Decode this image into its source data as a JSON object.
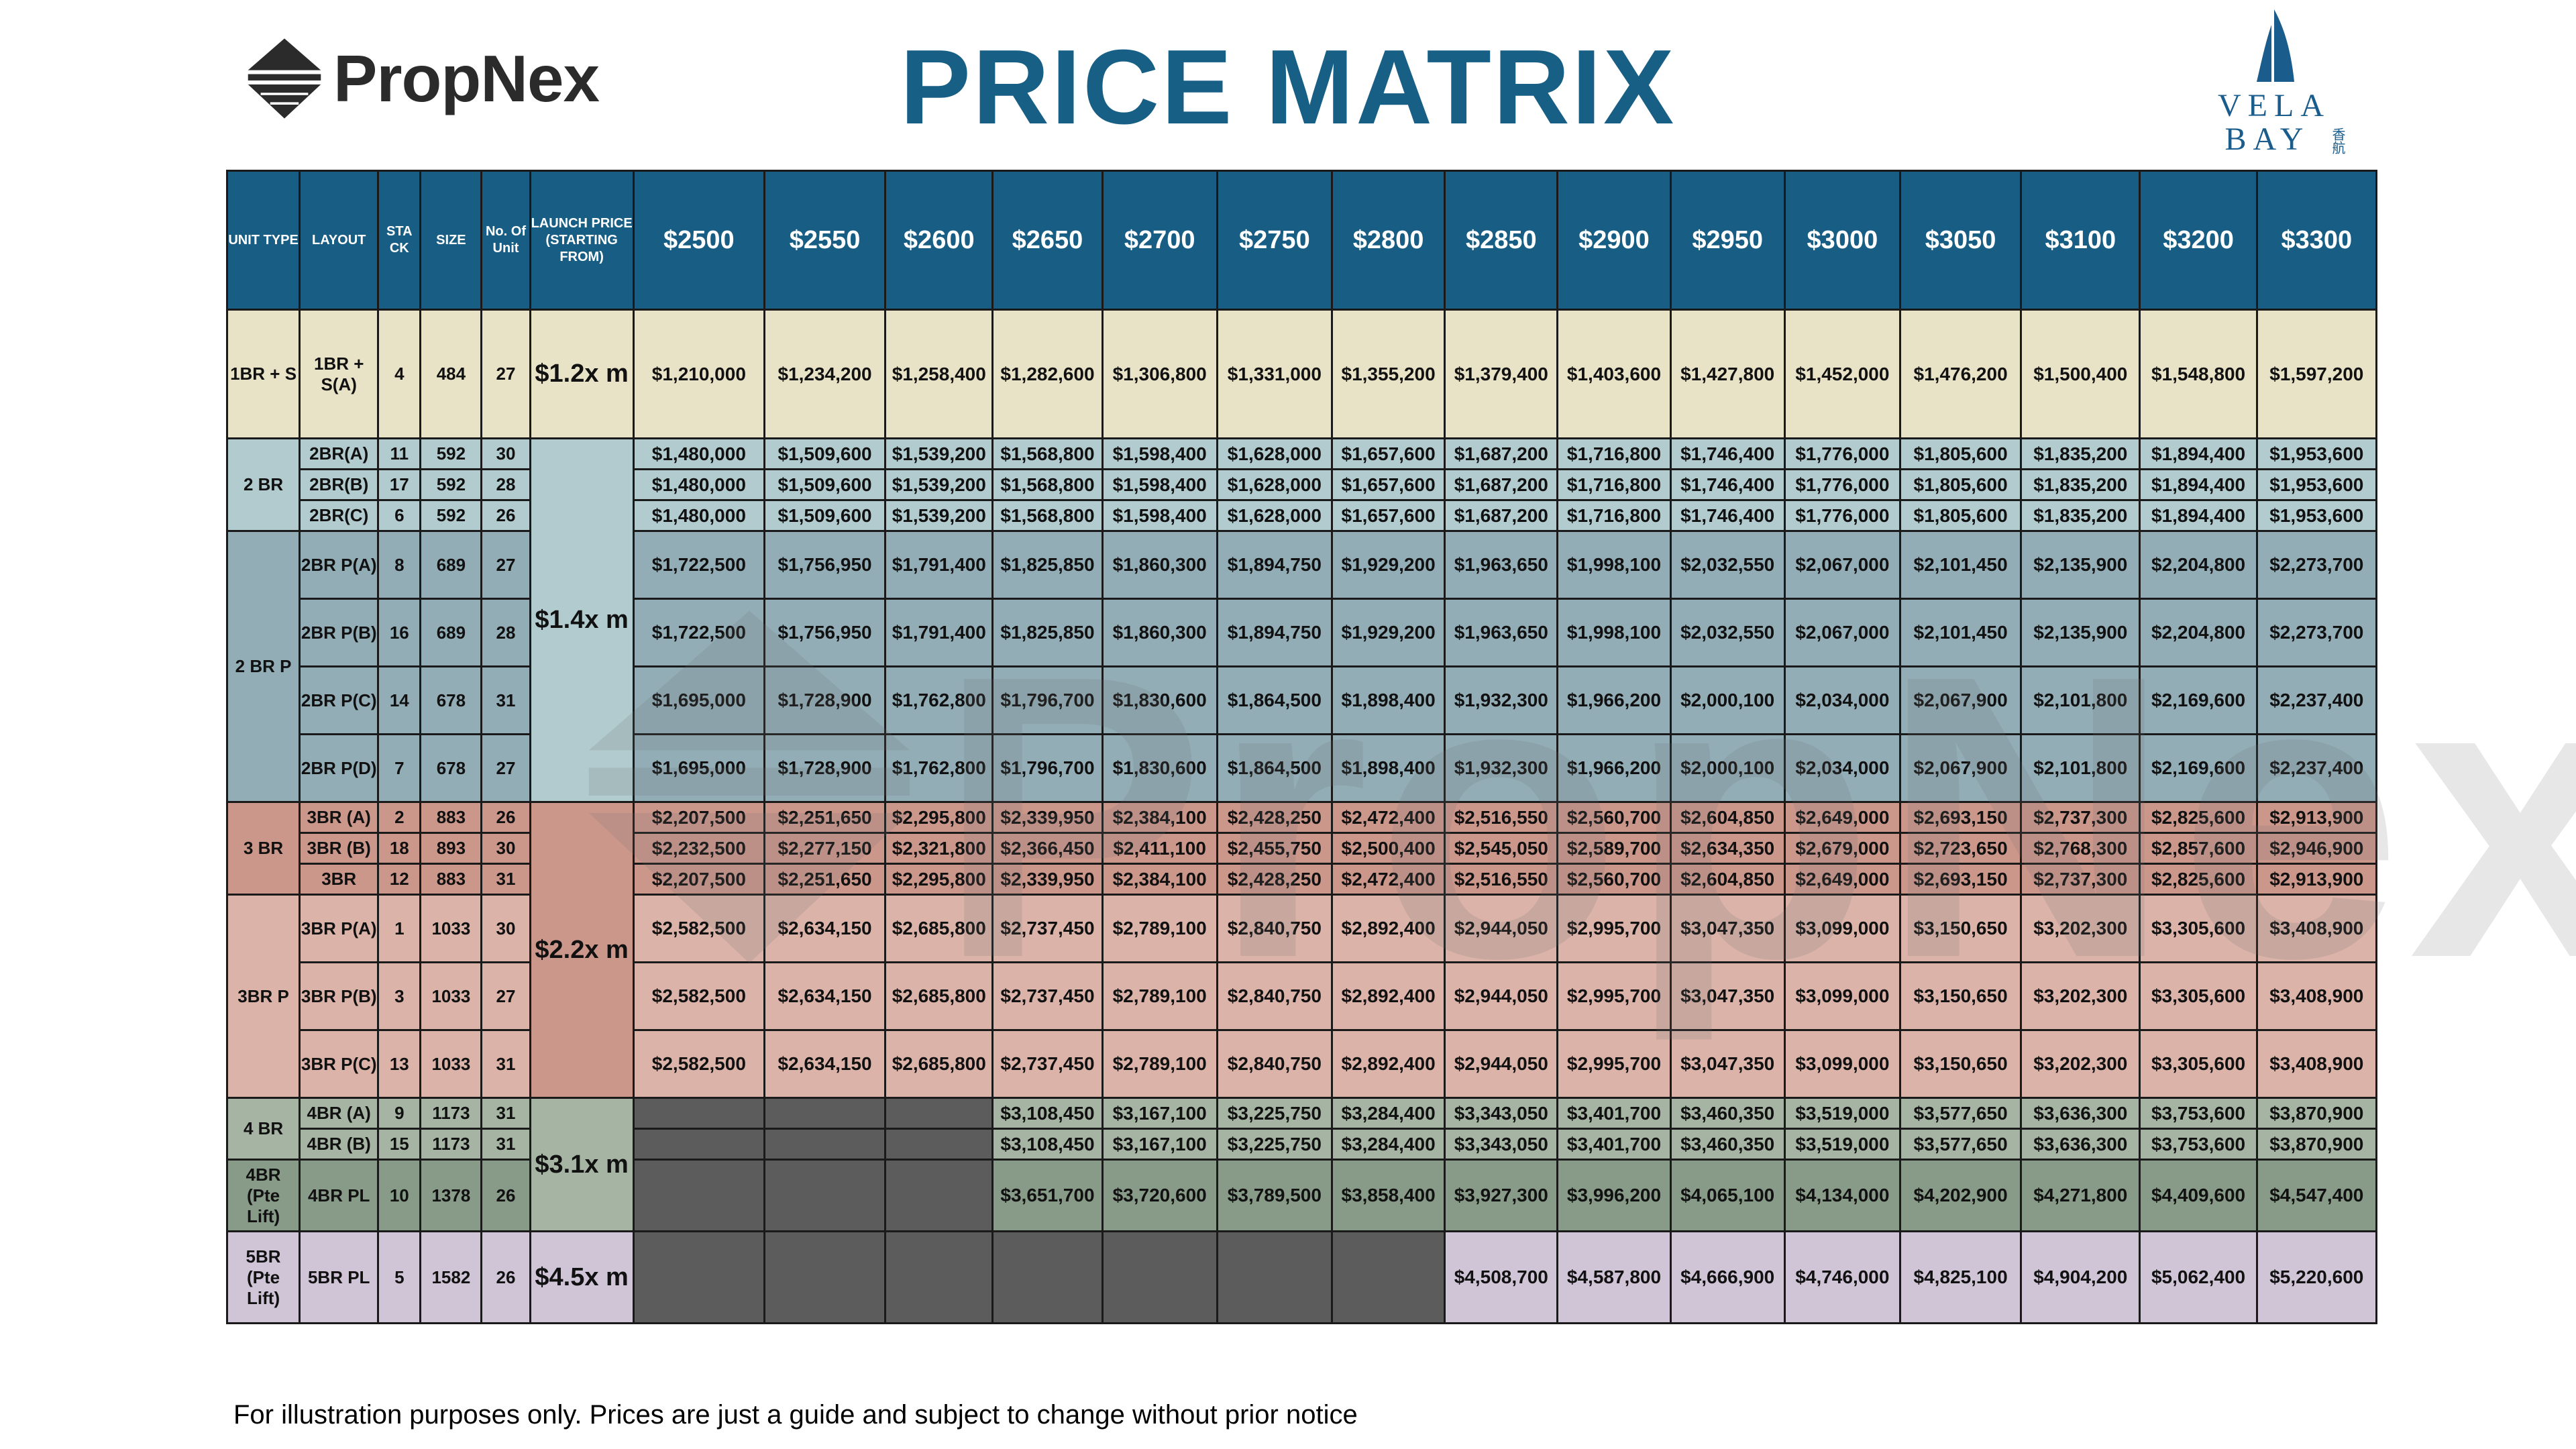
{
  "header": {
    "brand": "PropNex",
    "title": "PRICE MATRIX",
    "project_logo_line1": "VELA",
    "project_logo_line2": "BAY",
    "project_logo_cn": "香航"
  },
  "table": {
    "headers": {
      "unit_type": "UNIT TYPE",
      "layout": "LAYOUT",
      "stack": "STA CK",
      "size": "SIZE",
      "units": "No. Of Unit",
      "launch": "LAUNCH PRICE (STARTING FROM)",
      "prices": [
        "$2500",
        "$2550",
        "$2600",
        "$2650",
        "$2700",
        "$2750",
        "$2800",
        "$2850",
        "$2900",
        "$2950",
        "$3000",
        "$3050",
        "$3100",
        "$3200",
        "$3300"
      ]
    },
    "groups": [
      {
        "unit_type": "1BR + S",
        "launch": "$1.2x m",
        "rows": [
          {
            "layout": "1BR + S(A)",
            "stack": "4",
            "size": "484",
            "units": "27",
            "values": [
              "$1,210,000",
              "$1,234,200",
              "$1,258,400",
              "$1,282,600",
              "$1,306,800",
              "$1,331,000",
              "$1,355,200",
              "$1,379,400",
              "$1,403,600",
              "$1,427,800",
              "$1,452,000",
              "$1,476,200",
              "$1,500,400",
              "$1,548,800",
              "$1,597,200"
            ]
          }
        ]
      },
      {
        "unit_type": "2 BR",
        "launch": "$1.4x m",
        "rows": [
          {
            "layout": "2BR(A)",
            "stack": "11",
            "size": "592",
            "units": "30",
            "values": [
              "$1,480,000",
              "$1,509,600",
              "$1,539,200",
              "$1,568,800",
              "$1,598,400",
              "$1,628,000",
              "$1,657,600",
              "$1,687,200",
              "$1,716,800",
              "$1,746,400",
              "$1,776,000",
              "$1,805,600",
              "$1,835,200",
              "$1,894,400",
              "$1,953,600"
            ]
          },
          {
            "layout": "2BR(B)",
            "stack": "17",
            "size": "592",
            "units": "28",
            "values": [
              "$1,480,000",
              "$1,509,600",
              "$1,539,200",
              "$1,568,800",
              "$1,598,400",
              "$1,628,000",
              "$1,657,600",
              "$1,687,200",
              "$1,716,800",
              "$1,746,400",
              "$1,776,000",
              "$1,805,600",
              "$1,835,200",
              "$1,894,400",
              "$1,953,600"
            ]
          },
          {
            "layout": "2BR(C)",
            "stack": "6",
            "size": "592",
            "units": "26",
            "values": [
              "$1,480,000",
              "$1,509,600",
              "$1,539,200",
              "$1,568,800",
              "$1,598,400",
              "$1,628,000",
              "$1,657,600",
              "$1,687,200",
              "$1,716,800",
              "$1,746,400",
              "$1,776,000",
              "$1,805,600",
              "$1,835,200",
              "$1,894,400",
              "$1,953,600"
            ]
          }
        ]
      },
      {
        "unit_type": "2 BR P",
        "launch": "",
        "rows": [
          {
            "layout": "2BR P(A)",
            "stack": "8",
            "size": "689",
            "units": "27",
            "values": [
              "$1,722,500",
              "$1,756,950",
              "$1,791,400",
              "$1,825,850",
              "$1,860,300",
              "$1,894,750",
              "$1,929,200",
              "$1,963,650",
              "$1,998,100",
              "$2,032,550",
              "$2,067,000",
              "$2,101,450",
              "$2,135,900",
              "$2,204,800",
              "$2,273,700"
            ]
          },
          {
            "layout": "2BR P(B)",
            "stack": "16",
            "size": "689",
            "units": "28",
            "values": [
              "$1,722,500",
              "$1,756,950",
              "$1,791,400",
              "$1,825,850",
              "$1,860,300",
              "$1,894,750",
              "$1,929,200",
              "$1,963,650",
              "$1,998,100",
              "$2,032,550",
              "$2,067,000",
              "$2,101,450",
              "$2,135,900",
              "$2,204,800",
              "$2,273,700"
            ]
          },
          {
            "layout": "2BR P(C)",
            "stack": "14",
            "size": "678",
            "units": "31",
            "values": [
              "$1,695,000",
              "$1,728,900",
              "$1,762,800",
              "$1,796,700",
              "$1,830,600",
              "$1,864,500",
              "$1,898,400",
              "$1,932,300",
              "$1,966,200",
              "$2,000,100",
              "$2,034,000",
              "$2,067,900",
              "$2,101,800",
              "$2,169,600",
              "$2,237,400"
            ]
          },
          {
            "layout": "2BR P(D)",
            "stack": "7",
            "size": "678",
            "units": "27",
            "values": [
              "$1,695,000",
              "$1,728,900",
              "$1,762,800",
              "$1,796,700",
              "$1,830,600",
              "$1,864,500",
              "$1,898,400",
              "$1,932,300",
              "$1,966,200",
              "$2,000,100",
              "$2,034,000",
              "$2,067,900",
              "$2,101,800",
              "$2,169,600",
              "$2,237,400"
            ]
          }
        ]
      },
      {
        "unit_type": "3 BR",
        "launch": "$2.2x m",
        "rows": [
          {
            "layout": "3BR (A)",
            "stack": "2",
            "size": "883",
            "units": "26",
            "values": [
              "$2,207,500",
              "$2,251,650",
              "$2,295,800",
              "$2,339,950",
              "$2,384,100",
              "$2,428,250",
              "$2,472,400",
              "$2,516,550",
              "$2,560,700",
              "$2,604,850",
              "$2,649,000",
              "$2,693,150",
              "$2,737,300",
              "$2,825,600",
              "$2,913,900"
            ]
          },
          {
            "layout": "3BR (B)",
            "stack": "18",
            "size": "893",
            "units": "30",
            "values": [
              "$2,232,500",
              "$2,277,150",
              "$2,321,800",
              "$2,366,450",
              "$2,411,100",
              "$2,455,750",
              "$2,500,400",
              "$2,545,050",
              "$2,589,700",
              "$2,634,350",
              "$2,679,000",
              "$2,723,650",
              "$2,768,300",
              "$2,857,600",
              "$2,946,900"
            ]
          },
          {
            "layout": "3BR",
            "stack": "12",
            "size": "883",
            "units": "31",
            "values": [
              "$2,207,500",
              "$2,251,650",
              "$2,295,800",
              "$2,339,950",
              "$2,384,100",
              "$2,428,250",
              "$2,472,400",
              "$2,516,550",
              "$2,560,700",
              "$2,604,850",
              "$2,649,000",
              "$2,693,150",
              "$2,737,300",
              "$2,825,600",
              "$2,913,900"
            ]
          }
        ]
      },
      {
        "unit_type": "3BR P",
        "launch": "",
        "rows": [
          {
            "layout": "3BR P(A)",
            "stack": "1",
            "size": "1033",
            "units": "30",
            "values": [
              "$2,582,500",
              "$2,634,150",
              "$2,685,800",
              "$2,737,450",
              "$2,789,100",
              "$2,840,750",
              "$2,892,400",
              "$2,944,050",
              "$2,995,700",
              "$3,047,350",
              "$3,099,000",
              "$3,150,650",
              "$3,202,300",
              "$3,305,600",
              "$3,408,900"
            ]
          },
          {
            "layout": "3BR P(B)",
            "stack": "3",
            "size": "1033",
            "units": "27",
            "values": [
              "$2,582,500",
              "$2,634,150",
              "$2,685,800",
              "$2,737,450",
              "$2,789,100",
              "$2,840,750",
              "$2,892,400",
              "$2,944,050",
              "$2,995,700",
              "$3,047,350",
              "$3,099,000",
              "$3,150,650",
              "$3,202,300",
              "$3,305,600",
              "$3,408,900"
            ]
          },
          {
            "layout": "3BR P(C)",
            "stack": "13",
            "size": "1033",
            "units": "31",
            "values": [
              "$2,582,500",
              "$2,634,150",
              "$2,685,800",
              "$2,737,450",
              "$2,789,100",
              "$2,840,750",
              "$2,892,400",
              "$2,944,050",
              "$2,995,700",
              "$3,047,350",
              "$3,099,000",
              "$3,150,650",
              "$3,202,300",
              "$3,305,600",
              "$3,408,900"
            ]
          }
        ]
      },
      {
        "unit_type": "4 BR",
        "launch": "$3.1x m",
        "rows": [
          {
            "layout": "4BR (A)",
            "stack": "9",
            "size": "1173",
            "units": "31",
            "values": [
              "",
              "",
              "",
              "$3,108,450",
              "$3,167,100",
              "$3,225,750",
              "$3,284,400",
              "$3,343,050",
              "$3,401,700",
              "$3,460,350",
              "$3,519,000",
              "$3,577,650",
              "$3,636,300",
              "$3,753,600",
              "$3,870,900"
            ]
          },
          {
            "layout": "4BR (B)",
            "stack": "15",
            "size": "1173",
            "units": "31",
            "values": [
              "",
              "",
              "",
              "$3,108,450",
              "$3,167,100",
              "$3,225,750",
              "$3,284,400",
              "$3,343,050",
              "$3,401,700",
              "$3,460,350",
              "$3,519,000",
              "$3,577,650",
              "$3,636,300",
              "$3,753,600",
              "$3,870,900"
            ]
          }
        ]
      },
      {
        "unit_type": "4BR (Pte Lift)",
        "launch": "",
        "rows": [
          {
            "layout": "4BR PL",
            "stack": "10",
            "size": "1378",
            "units": "26",
            "values": [
              "",
              "",
              "",
              "$3,651,700",
              "$3,720,600",
              "$3,789,500",
              "$3,858,400",
              "$3,927,300",
              "$3,996,200",
              "$4,065,100",
              "$4,134,000",
              "$4,202,900",
              "$4,271,800",
              "$4,409,600",
              "$4,547,400"
            ]
          }
        ]
      },
      {
        "unit_type": "5BR (Pte Lift)",
        "launch": "$4.5x m",
        "rows": [
          {
            "layout": "5BR PL",
            "stack": "5",
            "size": "1582",
            "units": "26",
            "values": [
              "",
              "",
              "",
              "",
              "",
              "",
              "",
              "$4,508,700",
              "$4,587,800",
              "$4,666,900",
              "$4,746,000",
              "$4,825,100",
              "$4,904,200",
              "$5,062,400",
              "$5,220,600"
            ]
          }
        ]
      }
    ]
  },
  "watermark": "PropNex",
  "footer": {
    "disclaimer": "For illustration purposes only. Prices are just a guide and subject to change without prior notice"
  },
  "colors": {
    "header_bg": "#185e84",
    "title": "#185f86",
    "empty_cell": "#5c5c5c",
    "row_1br": "#e8e2c7",
    "row_2br": "#b2cbce",
    "row_2brp": "#93adb7",
    "row_3br": "#cc978b",
    "row_3brp": "#dbb3a9",
    "row_4br": "#a6b5a3",
    "row_4brpl": "#889a88",
    "row_5br": "#cfc5d6"
  }
}
